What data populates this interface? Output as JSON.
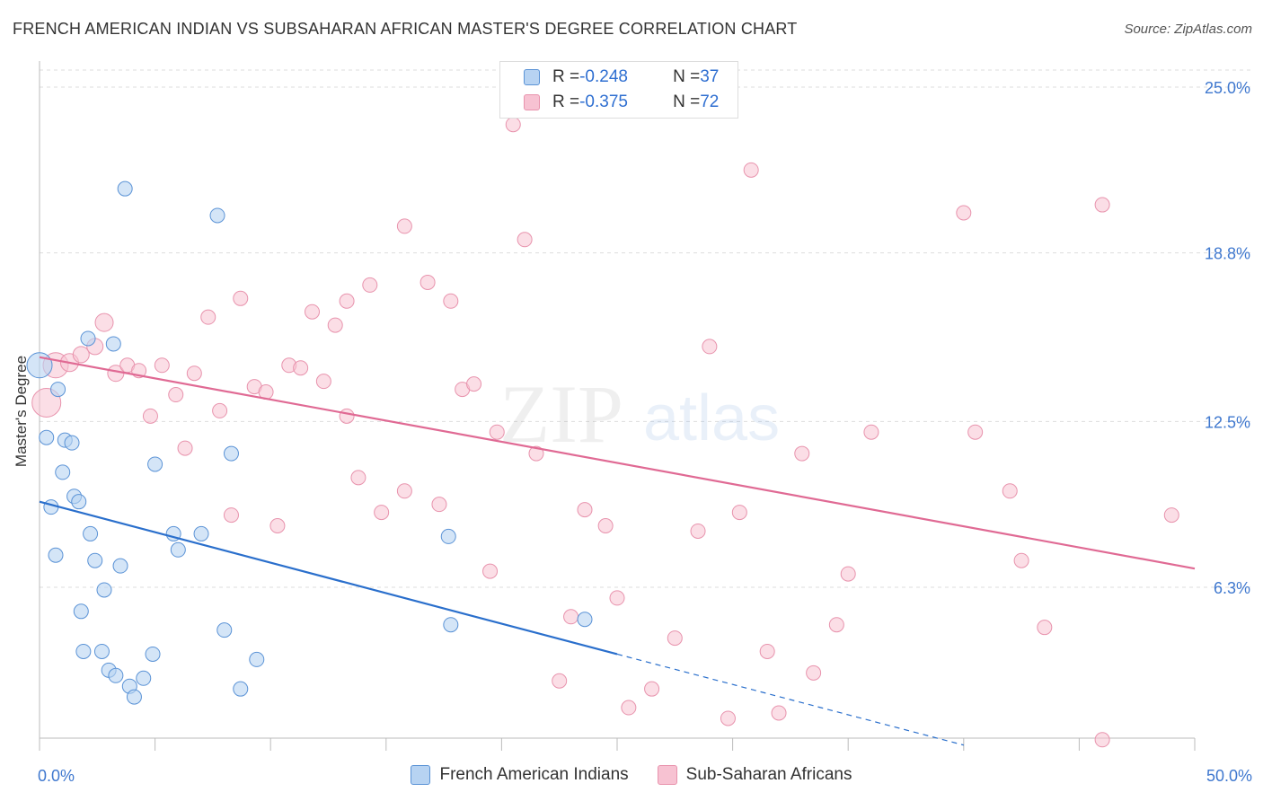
{
  "title": "FRENCH AMERICAN INDIAN VS SUBSAHARAN AFRICAN MASTER'S DEGREE CORRELATION CHART",
  "source": "Source: ZipAtlas.com",
  "watermark": {
    "zip": "ZIP",
    "atlas": "atlas"
  },
  "legend": {
    "rows": [
      {
        "r_label": "R = ",
        "r_value": "-0.248",
        "n_label": "N = ",
        "n_value": "37"
      },
      {
        "r_label": "R = ",
        "r_value": "-0.375",
        "n_label": "N = ",
        "n_value": "72"
      }
    ]
  },
  "bottom_legend": [
    "French American Indians",
    "Sub-Saharan Africans"
  ],
  "colors": {
    "blue_fill": "#b7d3f2",
    "blue_stroke": "#5b93d6",
    "blue_line": "#2a6fcc",
    "pink_fill": "#f7c2d2",
    "pink_stroke": "#e893ad",
    "pink_line": "#e06a94",
    "grid": "#dddddd",
    "tick_label": "#3f78cf"
  },
  "chart_data": {
    "type": "scatter",
    "title": "FRENCH AMERICAN INDIAN VS SUBSAHARAN AFRICAN MASTER'S DEGREE CORRELATION CHART",
    "xlabel": "",
    "ylabel": "Master's Degree",
    "xlim": [
      0,
      50
    ],
    "ylim": [
      0,
      25.6
    ],
    "x_tick_labels": [
      "0.0%",
      "50.0%"
    ],
    "y_ticks": [
      6.3,
      12.5,
      18.8,
      25.0
    ],
    "y_tick_labels": [
      "6.3%",
      "12.5%",
      "18.8%",
      "25.0%"
    ],
    "grid": "horizontal dashed",
    "legend_position": "top-center",
    "series": [
      {
        "name": "French American Indians",
        "color": "#5b93d6",
        "trend": {
          "x": [
            0,
            25
          ],
          "y": [
            9.5,
            3.8
          ],
          "extended_to": [
            40,
            0.4
          ]
        },
        "points": [
          [
            0.0,
            14.6,
            14
          ],
          [
            0.3,
            11.9,
            8
          ],
          [
            0.5,
            9.3,
            8
          ],
          [
            0.7,
            7.5,
            8
          ],
          [
            0.8,
            13.7,
            8
          ],
          [
            1.0,
            10.6,
            8
          ],
          [
            1.1,
            11.8,
            8
          ],
          [
            1.4,
            11.7,
            8
          ],
          [
            1.5,
            9.7,
            8
          ],
          [
            1.7,
            9.5,
            8
          ],
          [
            1.8,
            5.4,
            8
          ],
          [
            1.9,
            3.9,
            8
          ],
          [
            2.1,
            15.6,
            8
          ],
          [
            2.2,
            8.3,
            8
          ],
          [
            2.4,
            7.3,
            8
          ],
          [
            2.8,
            6.2,
            8
          ],
          [
            2.7,
            3.9,
            8
          ],
          [
            3.0,
            3.2,
            8
          ],
          [
            3.2,
            15.4,
            8
          ],
          [
            3.3,
            3.0,
            8
          ],
          [
            3.5,
            7.1,
            8
          ],
          [
            3.7,
            21.2,
            8
          ],
          [
            3.9,
            2.6,
            8
          ],
          [
            4.1,
            2.2,
            8
          ],
          [
            4.5,
            2.9,
            8
          ],
          [
            4.9,
            3.8,
            8
          ],
          [
            5.0,
            10.9,
            8
          ],
          [
            5.8,
            8.3,
            8
          ],
          [
            6.0,
            7.7,
            8
          ],
          [
            7.0,
            8.3,
            8
          ],
          [
            7.7,
            20.2,
            8
          ],
          [
            8.0,
            4.7,
            8
          ],
          [
            8.3,
            11.3,
            8
          ],
          [
            8.7,
            2.5,
            8
          ],
          [
            9.4,
            3.6,
            8
          ],
          [
            17.7,
            8.2,
            8
          ],
          [
            17.8,
            4.9,
            8
          ],
          [
            23.6,
            5.1,
            8
          ]
        ]
      },
      {
        "name": "Sub-Saharan Africans",
        "color": "#e893ad",
        "trend": {
          "x": [
            0,
            50
          ],
          "y": [
            14.9,
            7.0
          ]
        },
        "points": [
          [
            0.3,
            13.2,
            16
          ],
          [
            0.7,
            14.6,
            14
          ],
          [
            1.3,
            14.7,
            10
          ],
          [
            1.8,
            15.0,
            9
          ],
          [
            2.4,
            15.3,
            9
          ],
          [
            2.8,
            16.2,
            10
          ],
          [
            3.3,
            14.3,
            9
          ],
          [
            3.8,
            14.6,
            8
          ],
          [
            4.3,
            14.4,
            8
          ],
          [
            4.8,
            12.7,
            8
          ],
          [
            5.3,
            14.6,
            8
          ],
          [
            5.9,
            13.5,
            8
          ],
          [
            6.3,
            11.5,
            8
          ],
          [
            6.7,
            14.3,
            8
          ],
          [
            7.3,
            16.4,
            8
          ],
          [
            7.8,
            12.9,
            8
          ],
          [
            8.3,
            9.0,
            8
          ],
          [
            8.7,
            17.1,
            8
          ],
          [
            9.3,
            13.8,
            8
          ],
          [
            9.8,
            13.6,
            8
          ],
          [
            10.3,
            8.6,
            8
          ],
          [
            10.8,
            14.6,
            8
          ],
          [
            11.3,
            14.5,
            8
          ],
          [
            11.8,
            16.6,
            8
          ],
          [
            12.3,
            14.0,
            8
          ],
          [
            12.8,
            16.1,
            8
          ],
          [
            13.3,
            12.7,
            8
          ],
          [
            13.3,
            17.0,
            8
          ],
          [
            13.8,
            10.4,
            8
          ],
          [
            14.3,
            17.6,
            8
          ],
          [
            14.8,
            9.1,
            8
          ],
          [
            15.8,
            19.8,
            8
          ],
          [
            15.8,
            9.9,
            8
          ],
          [
            16.8,
            17.7,
            8
          ],
          [
            17.3,
            9.4,
            8
          ],
          [
            17.8,
            17.0,
            8
          ],
          [
            18.3,
            13.7,
            8
          ],
          [
            18.8,
            13.9,
            8
          ],
          [
            19.5,
            6.9,
            8
          ],
          [
            19.8,
            12.1,
            8
          ],
          [
            20.5,
            23.6,
            8
          ],
          [
            21.0,
            19.3,
            8
          ],
          [
            21.5,
            11.3,
            8
          ],
          [
            22.5,
            2.8,
            8
          ],
          [
            23.0,
            5.2,
            8
          ],
          [
            23.6,
            9.2,
            8
          ],
          [
            24.5,
            8.6,
            8
          ],
          [
            25.0,
            5.9,
            8
          ],
          [
            25.5,
            1.8,
            8
          ],
          [
            26.5,
            2.5,
            8
          ],
          [
            27.5,
            4.4,
            8
          ],
          [
            28.5,
            8.4,
            8
          ],
          [
            29.0,
            15.3,
            8
          ],
          [
            29.8,
            1.4,
            8
          ],
          [
            30.3,
            9.1,
            8
          ],
          [
            30.8,
            21.9,
            8
          ],
          [
            31.5,
            3.9,
            8
          ],
          [
            32.0,
            1.6,
            8
          ],
          [
            33.0,
            11.3,
            8
          ],
          [
            33.5,
            3.1,
            8
          ],
          [
            34.5,
            4.9,
            8
          ],
          [
            35.0,
            6.8,
            8
          ],
          [
            36.0,
            12.1,
            8
          ],
          [
            40.0,
            20.3,
            8
          ],
          [
            40.5,
            12.1,
            8
          ],
          [
            42.0,
            9.9,
            8
          ],
          [
            42.5,
            7.3,
            8
          ],
          [
            43.5,
            4.8,
            8
          ],
          [
            46.0,
            20.6,
            8
          ],
          [
            46.0,
            0.6,
            8
          ],
          [
            49.0,
            9.0,
            8
          ]
        ]
      }
    ]
  }
}
